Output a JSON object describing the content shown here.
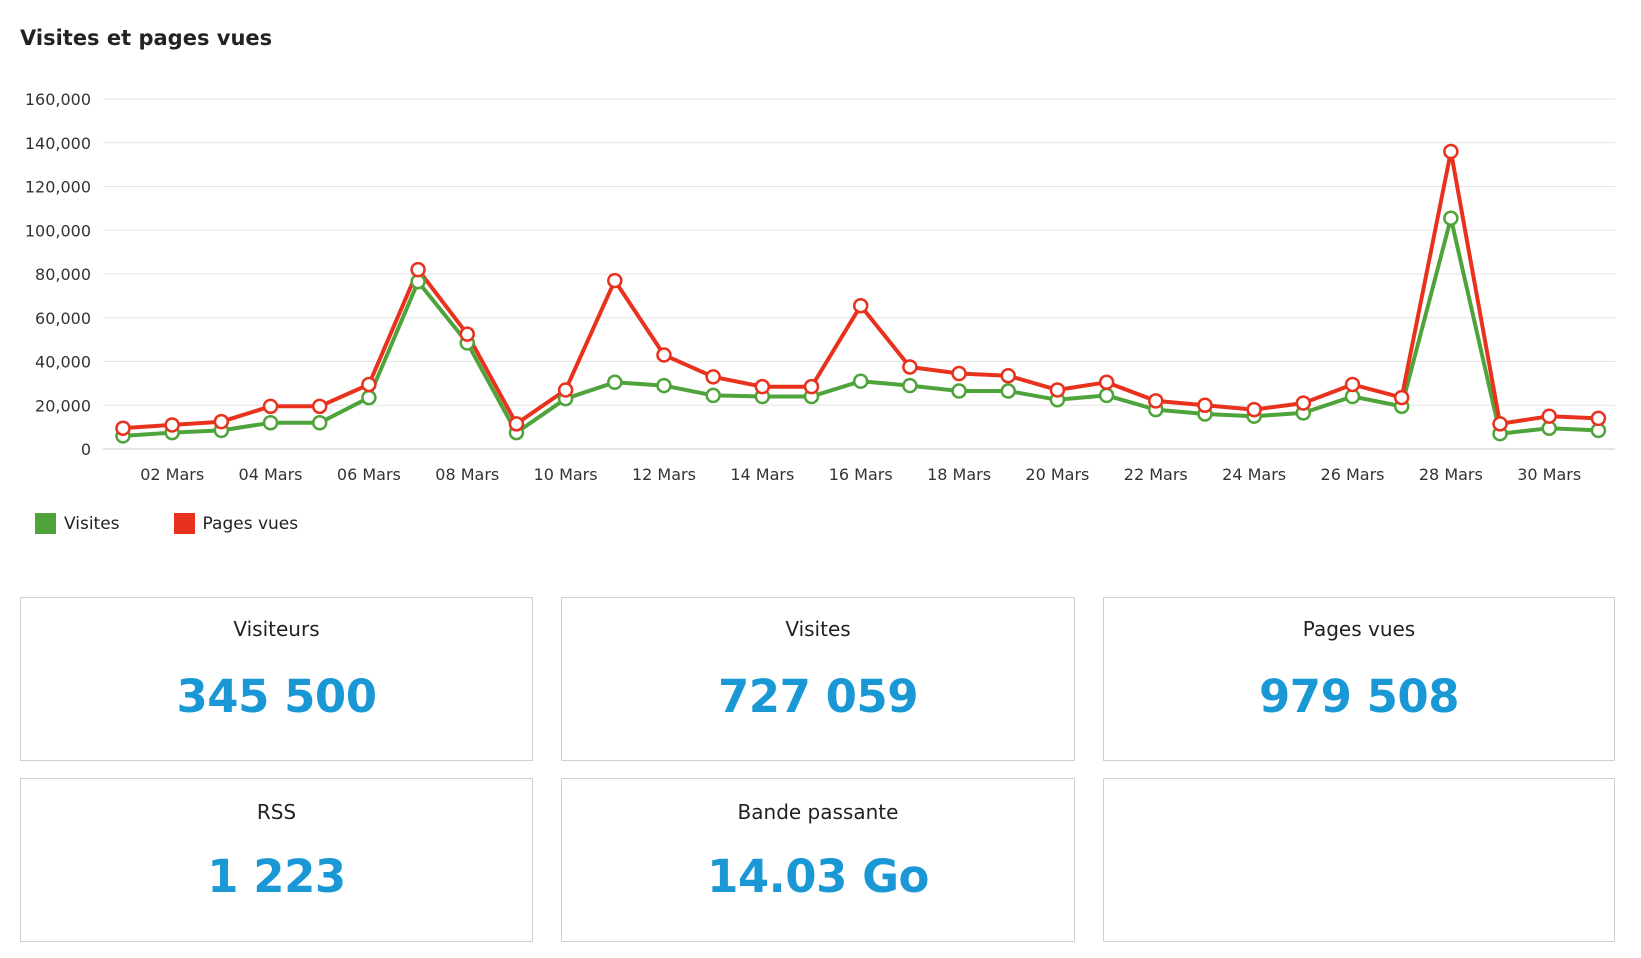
{
  "title": "Visites et pages vues",
  "colors": {
    "visites": "#4ea43b",
    "pages_vues": "#e8321e",
    "value": "#1a98d5"
  },
  "chart_data": {
    "type": "line",
    "x": [
      1,
      2,
      3,
      4,
      5,
      6,
      7,
      8,
      9,
      10,
      11,
      12,
      13,
      14,
      15,
      16,
      17,
      18,
      19,
      20,
      21,
      22,
      23,
      24,
      25,
      26,
      27,
      28,
      29,
      30,
      31
    ],
    "x_tick_days": [
      2,
      4,
      6,
      8,
      10,
      12,
      14,
      16,
      18,
      20,
      22,
      24,
      26,
      28,
      30
    ],
    "x_tick_labels": [
      "02 Mars",
      "04 Mars",
      "06 Mars",
      "08 Mars",
      "10 Mars",
      "12 Mars",
      "14 Mars",
      "16 Mars",
      "18 Mars",
      "20 Mars",
      "22 Mars",
      "24 Mars",
      "26 Mars",
      "28 Mars",
      "30 Mars"
    ],
    "y_ticks": [
      0,
      20000,
      40000,
      60000,
      80000,
      100000,
      120000,
      140000,
      160000
    ],
    "y_tick_labels": [
      "0",
      "20,000",
      "40,000",
      "60,000",
      "80,000",
      "100,000",
      "120,000",
      "140,000",
      "160,000"
    ],
    "ylim": [
      0,
      160000
    ],
    "grid": true,
    "legend_position": "bottom-left",
    "series": [
      {
        "name": "Visites",
        "color": "#4ea43b",
        "values": [
          6000,
          7500,
          8500,
          12000,
          12000,
          23500,
          76500,
          48500,
          7500,
          23000,
          30500,
          29000,
          24500,
          24000,
          24000,
          31000,
          29000,
          26500,
          26500,
          22500,
          24500,
          18000,
          16000,
          15000,
          16500,
          24000,
          19500,
          105500,
          7000,
          9500,
          8500
        ]
      },
      {
        "name": "Pages vues",
        "color": "#e8321e",
        "values": [
          9500,
          11000,
          12500,
          19500,
          19500,
          29500,
          82000,
          52500,
          11500,
          27000,
          77000,
          43000,
          33000,
          28500,
          28500,
          65500,
          37500,
          34500,
          33500,
          27000,
          30500,
          22000,
          20000,
          18000,
          21000,
          29500,
          23500,
          136000,
          11500,
          15000,
          14000
        ]
      }
    ]
  },
  "legend": [
    {
      "label": "Visites",
      "color": "#4ea43b"
    },
    {
      "label": "Pages vues",
      "color": "#e8321e"
    }
  ],
  "cards": [
    {
      "label": "Visiteurs",
      "value": "345 500"
    },
    {
      "label": "Visites",
      "value": "727 059"
    },
    {
      "label": "Pages vues",
      "value": "979 508"
    },
    {
      "label": "RSS",
      "value": "1 223"
    },
    {
      "label": "Bande passante",
      "value": "14.03 Go"
    },
    {
      "label": "",
      "value": ""
    }
  ]
}
